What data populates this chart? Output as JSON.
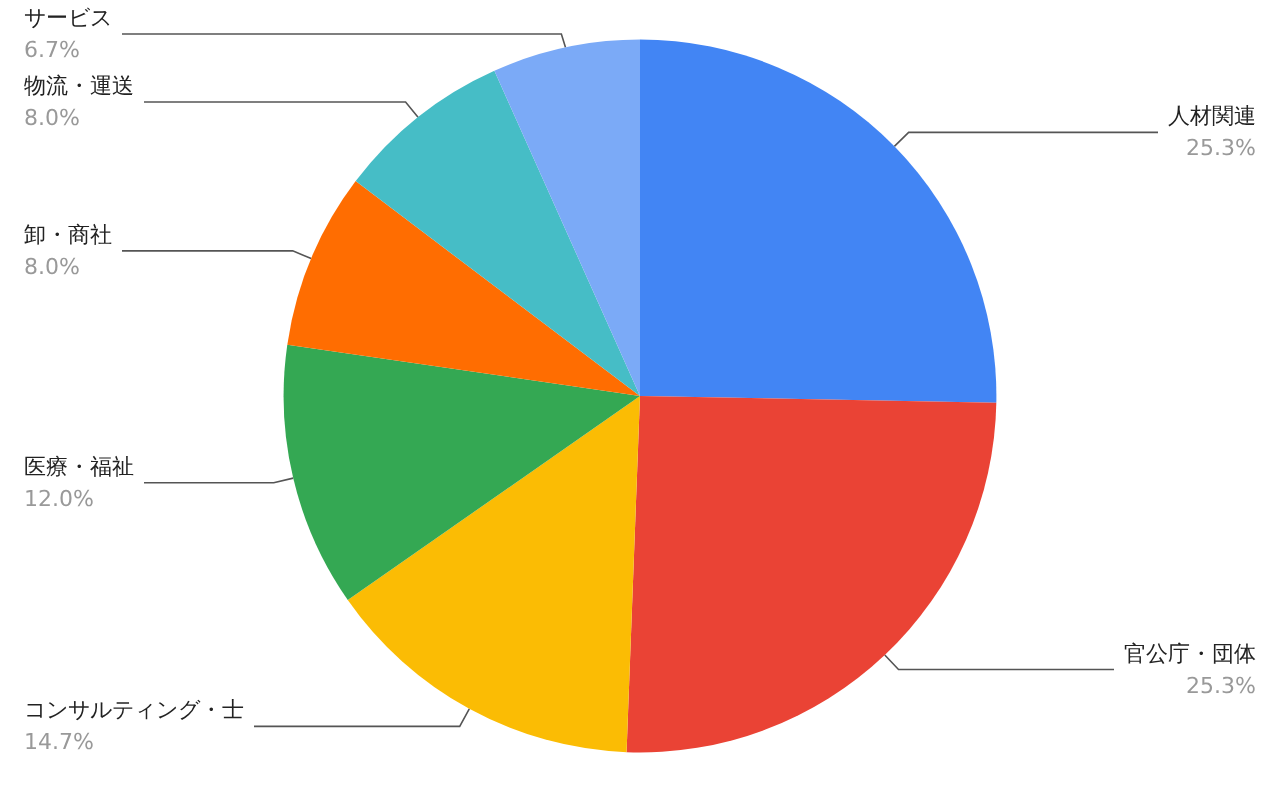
{
  "chart_data": {
    "type": "pie",
    "categories": [
      "人材関連",
      "官公庁・団体",
      "コンサルティング・士",
      "医療・福祉",
      "卸・商社",
      "物流・運送",
      "サービス"
    ],
    "values": [
      25.3,
      25.3,
      14.7,
      12.0,
      8.0,
      8.0,
      6.7
    ],
    "value_labels": [
      "25.3%",
      "25.3%",
      "14.7%",
      "12.0%",
      "8.0%",
      "8.0%",
      "6.7%"
    ],
    "colors": [
      "#4285f4",
      "#ea4335",
      "#fbbc04",
      "#34a853",
      "#ff6d01",
      "#46bdc6",
      "#7baaf7"
    ]
  }
}
